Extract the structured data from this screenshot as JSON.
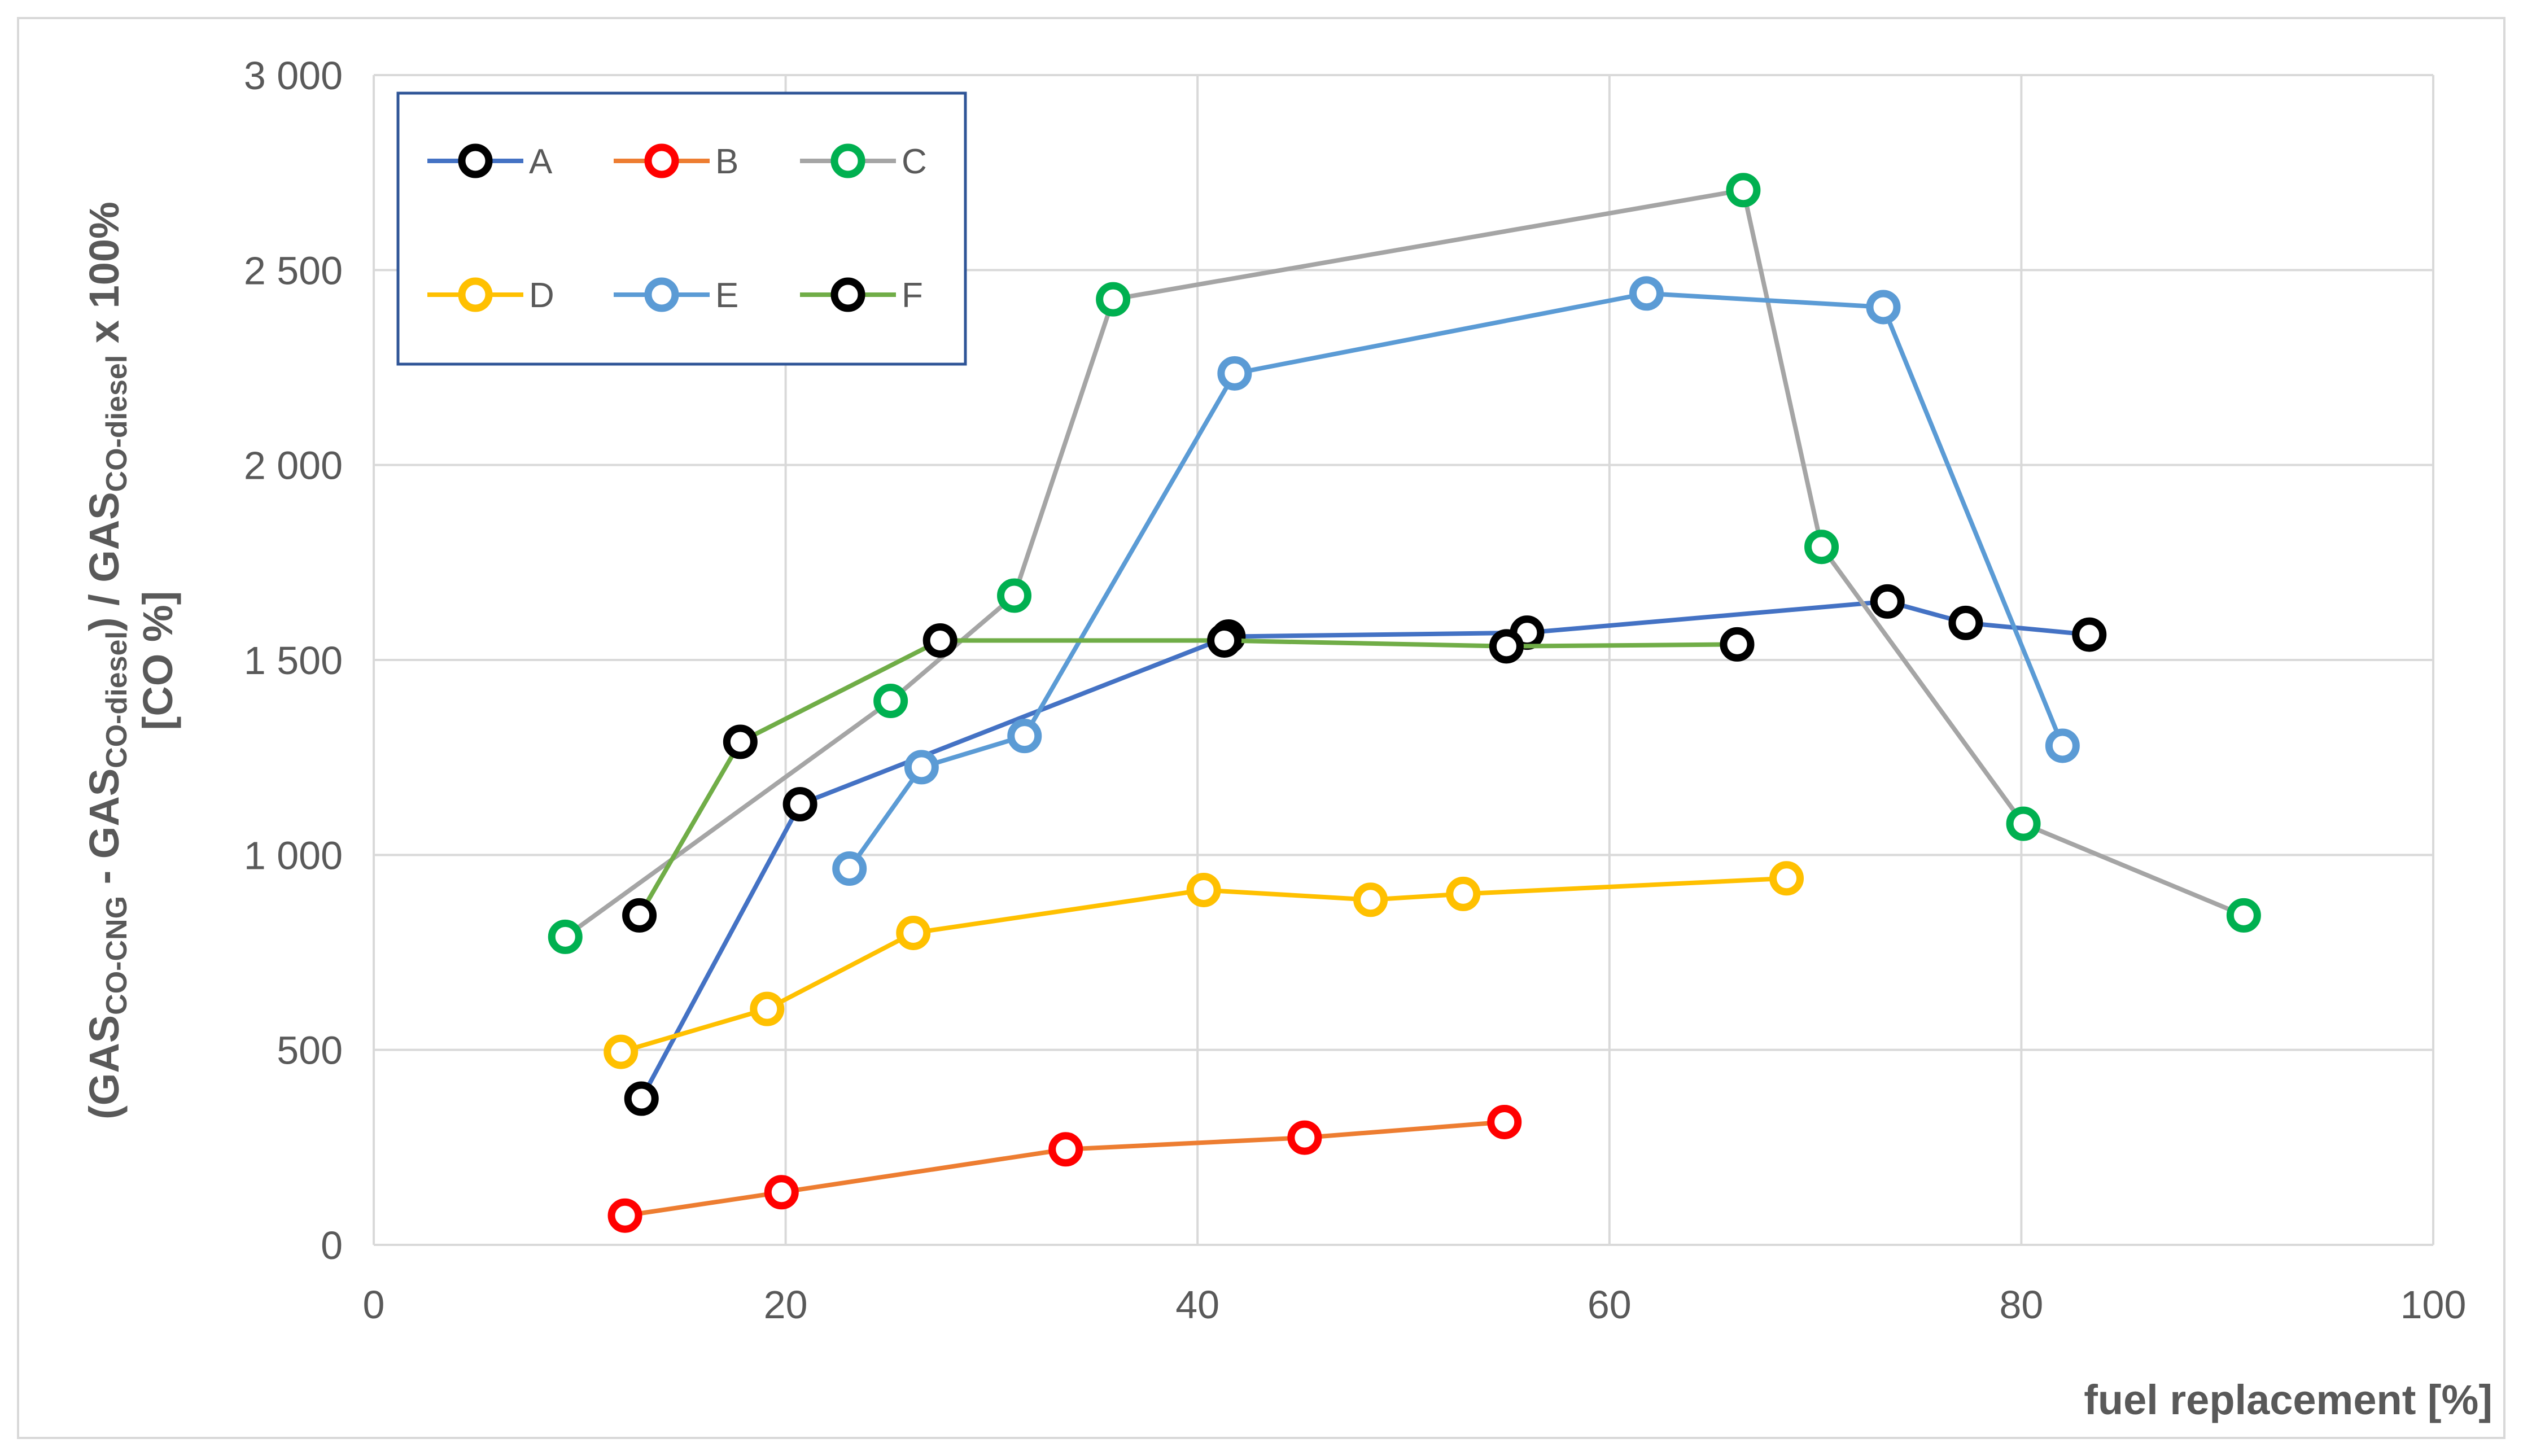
{
  "chart_data": {
    "type": "line",
    "title": "",
    "xlabel": "fuel replacement [%]",
    "ylabel": {
      "line1_parts": [
        {
          "text": "(GAS",
          "sub": false
        },
        {
          "text": "CO-CNG",
          "sub": true
        },
        {
          "text": " - GAS",
          "sub": false
        },
        {
          "text": "CO-diesel",
          "sub": true
        },
        {
          "text": ") / GAS",
          "sub": false
        },
        {
          "text": "CO-diesel",
          "sub": true
        },
        {
          "text": " x 100%",
          "sub": false
        }
      ],
      "line2": "[CO %]"
    },
    "xlim": [
      0,
      100
    ],
    "ylim": [
      0,
      3000
    ],
    "xticks": [
      0,
      20,
      40,
      60,
      80,
      100
    ],
    "yticks": [
      0,
      500,
      1000,
      1500,
      2000,
      2500,
      3000
    ],
    "xtick_labels": [
      "0",
      "20",
      "40",
      "60",
      "80",
      "100"
    ],
    "ytick_labels": [
      "0",
      "500",
      "1 000",
      "1 500",
      "2 000",
      "2 500",
      "3 000"
    ],
    "grid": true,
    "legend_position": "top-left",
    "series": [
      {
        "name": "A",
        "line_color": "#4472c4",
        "marker_color": "#000000",
        "x": [
          13,
          20.7,
          41.5,
          56,
          73.5,
          77.3,
          83.3
        ],
        "y": [
          375,
          1130,
          1560,
          1570,
          1650,
          1595,
          1565
        ]
      },
      {
        "name": "B",
        "line_color": "#ed7d31",
        "marker_color": "#ff0000",
        "x": [
          12.2,
          19.8,
          33.6,
          45.2,
          54.9
        ],
        "y": [
          75,
          135,
          245,
          275,
          315
        ]
      },
      {
        "name": "C",
        "line_color": "#a5a5a5",
        "marker_color": "#00b050",
        "x": [
          9.3,
          25.1,
          31.1,
          35.9,
          66.5,
          70.3,
          80.1,
          90.8
        ],
        "y": [
          790,
          1395,
          1665,
          2425,
          2705,
          1790,
          1080,
          845
        ]
      },
      {
        "name": "D",
        "line_color": "#ffc000",
        "marker_color": "#ffc000",
        "x": [
          12,
          19.1,
          26.2,
          40.3,
          48.4,
          52.9,
          68.6
        ],
        "y": [
          495,
          605,
          800,
          910,
          885,
          900,
          940
        ]
      },
      {
        "name": "E",
        "line_color": "#5b9bd5",
        "marker_color": "#5b9bd5",
        "x": [
          23.1,
          26.6,
          31.6,
          41.8,
          61.8,
          73.3,
          82
        ],
        "y": [
          965,
          1225,
          1305,
          2235,
          2440,
          2405,
          1280
        ]
      },
      {
        "name": "F",
        "line_color": "#70ad47",
        "marker_color": "#000000",
        "x": [
          12.9,
          17.8,
          27.5,
          41.3,
          55,
          66.2
        ],
        "y": [
          845,
          1290,
          1550,
          1550,
          1535,
          1540
        ]
      }
    ]
  }
}
